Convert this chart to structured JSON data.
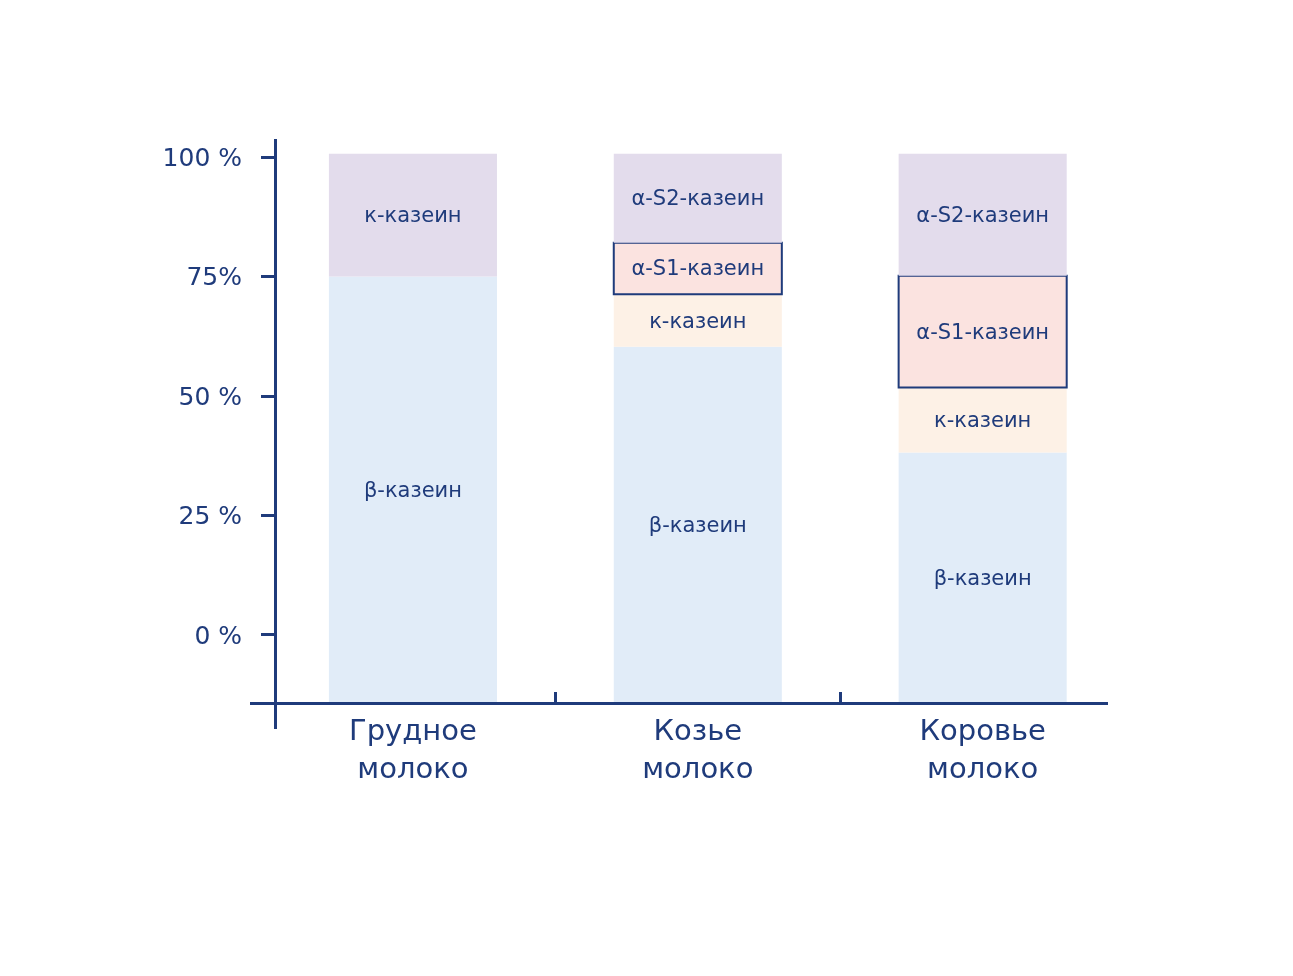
{
  "chart_data": {
    "type": "bar",
    "categories": [
      "Грудное молоко",
      "Козье молоко",
      "Коровье молоко"
    ],
    "series": [
      {
        "name": "β-казеин",
        "color": "#e1ecf8",
        "base": [
          -14.3,
          -14.3,
          -14.3
        ],
        "values": [
          89.3,
          74.6,
          52.5
        ]
      },
      {
        "name": "к-казеин",
        "colors": [
          "#e3dcec",
          "#fdf1e6",
          "#fdf1e6"
        ],
        "base": [
          75.0,
          60.3,
          38.2
        ],
        "values": [
          25.7,
          11.0,
          13.6
        ]
      },
      {
        "name": "α-S1-казеин",
        "color": "#fbe3e0",
        "base": [
          null,
          71.3,
          51.8
        ],
        "values": [
          null,
          10.8,
          23.4
        ]
      },
      {
        "name": "α-S2-казеин",
        "color": "#e3dcec",
        "base": [
          null,
          82.1,
          75.2
        ],
        "values": [
          null,
          18.6,
          25.5
        ]
      }
    ],
    "ylim": [
      -19.7,
      103.8
    ],
    "yticks": [
      {
        "value": 0,
        "label": "0 %"
      },
      {
        "value": 25,
        "label": "25 %"
      },
      {
        "value": 50,
        "label": "50 %"
      },
      {
        "value": 75,
        "label": "75%"
      },
      {
        "value": 100,
        "label": "100 %"
      }
    ]
  }
}
